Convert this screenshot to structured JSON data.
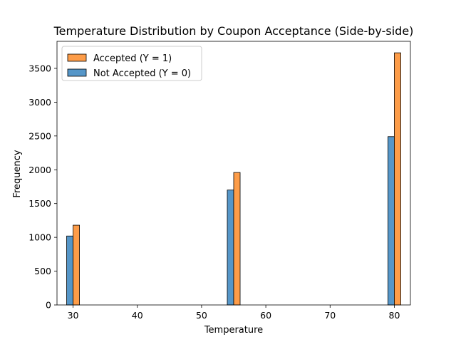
{
  "chart_data": {
    "type": "bar",
    "title": "Temperature Distribution by Coupon Acceptance (Side-by-side)",
    "xlabel": "Temperature",
    "ylabel": "Frequency",
    "xlim": [
      27.5,
      82.5
    ],
    "ylim": [
      0,
      3900
    ],
    "xticks": [
      30,
      40,
      50,
      60,
      70,
      80
    ],
    "yticks": [
      0,
      500,
      1000,
      1500,
      2000,
      2500,
      3000,
      3500
    ],
    "x": [
      30,
      55,
      80
    ],
    "bar_width": 1,
    "series": [
      {
        "name": "Not Accepted (Y = 0)",
        "color": "#5596c8",
        "values": [
          1020,
          1700,
          2490
        ],
        "offset": -0.5
      },
      {
        "name": "Accepted (Y = 1)",
        "color": "#fd9c48",
        "values": [
          1180,
          1960,
          3730
        ],
        "offset": 0.5
      }
    ],
    "legend": {
      "placement": "top-left",
      "order": [
        "Accepted (Y = 1)",
        "Not Accepted (Y = 0)"
      ]
    },
    "grid": false
  }
}
